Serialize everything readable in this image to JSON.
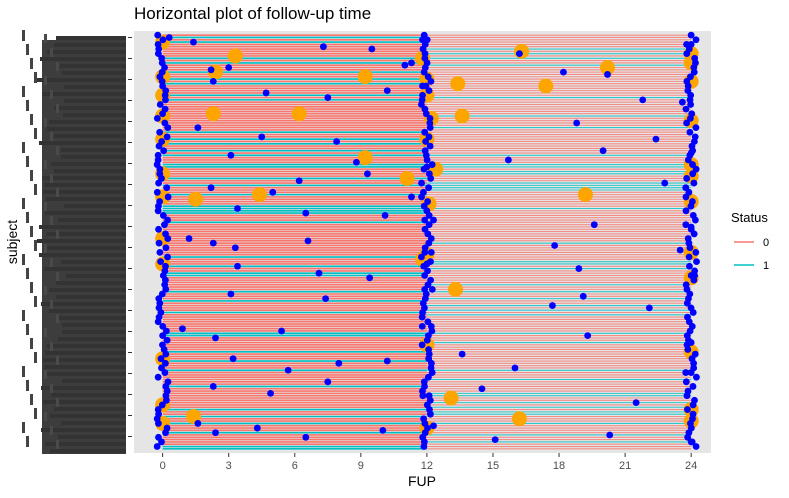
{
  "chart_data": {
    "type": "line",
    "title": "Horizontal plot of follow-up time",
    "xlabel": "FUP",
    "ylabel": "subject",
    "xlim": [
      -1.3,
      24.9
    ],
    "x_ticks": [
      0,
      3,
      6,
      9,
      12,
      15,
      18,
      21,
      24
    ],
    "y_tick_labels_legible": false,
    "n_subjects": 180,
    "grid": false,
    "panel_background": "#e5e5e5",
    "legend": {
      "title": "Status",
      "position": "right",
      "entries": [
        {
          "label": "0",
          "color": "#f8766d"
        },
        {
          "label": "1",
          "color": "#00bfc4"
        }
      ]
    },
    "segment_colors": {
      "0": "#f8766d",
      "1": "#00bfc4"
    },
    "start_times": [
      0,
      12
    ],
    "end_times": [
      12,
      24
    ],
    "event_marker_color": "#0000ff",
    "censor_marker_color": "#ffa500",
    "event_points": [
      [
        0.3,
        1
      ],
      [
        1.4,
        3
      ],
      [
        7.3,
        5
      ],
      [
        9.5,
        6
      ],
      [
        11.8,
        2
      ],
      [
        16.2,
        8
      ],
      [
        24,
        4
      ],
      [
        2.2,
        15
      ],
      [
        3.0,
        14
      ],
      [
        11.3,
        12
      ],
      [
        11.0,
        13
      ],
      [
        20.2,
        17
      ],
      [
        18.2,
        16
      ],
      [
        2.3,
        20
      ],
      [
        4.7,
        25
      ],
      [
        7.5,
        27
      ],
      [
        10.2,
        24
      ],
      [
        11.8,
        22
      ],
      [
        21.8,
        28
      ],
      [
        23.6,
        29
      ],
      [
        1.6,
        40
      ],
      [
        4.5,
        44
      ],
      [
        7.9,
        46
      ],
      [
        11.9,
        42
      ],
      [
        18.8,
        38
      ],
      [
        22.4,
        45
      ],
      [
        3.1,
        52
      ],
      [
        8.8,
        55
      ],
      [
        12.0,
        57
      ],
      [
        15.7,
        54
      ],
      [
        20.0,
        50
      ],
      [
        24.0,
        51
      ],
      [
        2.2,
        66
      ],
      [
        5.0,
        68
      ],
      [
        6.2,
        63
      ],
      [
        9.3,
        60
      ],
      [
        11.3,
        70
      ],
      [
        22.8,
        64
      ],
      [
        3.4,
        75
      ],
      [
        6.5,
        77
      ],
      [
        10.1,
        78
      ],
      [
        12.3,
        80
      ],
      [
        19.6,
        82
      ],
      [
        24,
        83
      ],
      [
        1.2,
        88
      ],
      [
        2.3,
        90
      ],
      [
        3.3,
        92
      ],
      [
        6.6,
        89
      ],
      [
        12.2,
        94
      ],
      [
        17.8,
        91
      ],
      [
        23.5,
        93
      ],
      [
        3.4,
        100
      ],
      [
        7.1,
        103
      ],
      [
        9.4,
        105
      ],
      [
        12.0,
        99
      ],
      [
        18.9,
        101
      ],
      [
        24,
        104
      ],
      [
        3.1,
        112
      ],
      [
        7.4,
        114
      ],
      [
        11.9,
        110
      ],
      [
        17.7,
        117
      ],
      [
        19.1,
        113
      ],
      [
        22.1,
        118
      ],
      [
        0.9,
        127
      ],
      [
        2.4,
        131
      ],
      [
        5.4,
        128
      ],
      [
        12.2,
        126
      ],
      [
        19.3,
        130
      ],
      [
        24,
        133
      ],
      [
        3.2,
        140
      ],
      [
        5.7,
        145
      ],
      [
        8.0,
        142
      ],
      [
        10.2,
        141
      ],
      [
        13.6,
        138
      ],
      [
        16.0,
        144
      ],
      [
        24,
        146
      ],
      [
        2.3,
        152
      ],
      [
        4.9,
        155
      ],
      [
        7.5,
        150
      ],
      [
        12.1,
        156
      ],
      [
        14.5,
        153
      ],
      [
        21.5,
        159
      ],
      [
        1.6,
        168
      ],
      [
        2.4,
        172
      ],
      [
        4.3,
        170
      ],
      [
        6.5,
        174
      ],
      [
        10.0,
        171
      ],
      [
        12.3,
        169
      ],
      [
        15.1,
        175
      ],
      [
        20.3,
        173
      ],
      [
        24,
        176
      ]
    ],
    "censor_points": [
      [
        0,
        3
      ],
      [
        3.3,
        9
      ],
      [
        11.8,
        10
      ],
      [
        16.3,
        7
      ],
      [
        24,
        8
      ],
      [
        0,
        18
      ],
      [
        2.4,
        16
      ],
      [
        9.2,
        18
      ],
      [
        12.0,
        19
      ],
      [
        20.2,
        14
      ],
      [
        24,
        12
      ],
      [
        0,
        26
      ],
      [
        12.0,
        26
      ],
      [
        13.4,
        21
      ],
      [
        17.4,
        22
      ],
      [
        24,
        20
      ],
      [
        0,
        35
      ],
      [
        2.3,
        34
      ],
      [
        6.2,
        34
      ],
      [
        12.2,
        36
      ],
      [
        13.6,
        35
      ],
      [
        24,
        37
      ],
      [
        0,
        45
      ],
      [
        9.2,
        53
      ],
      [
        12.0,
        45
      ],
      [
        24,
        56
      ],
      [
        0,
        60
      ],
      [
        11.1,
        62
      ],
      [
        12.4,
        58
      ],
      [
        24,
        61
      ],
      [
        1.5,
        71
      ],
      [
        4.4,
        69
      ],
      [
        0,
        70
      ],
      [
        12.1,
        73
      ],
      [
        19.2,
        69
      ],
      [
        24,
        72
      ],
      [
        0,
        88
      ],
      [
        12.0,
        95
      ],
      [
        24,
        94
      ],
      [
        0,
        99
      ],
      [
        13.3,
        110
      ],
      [
        11.8,
        97
      ],
      [
        24,
        105
      ],
      [
        0,
        140
      ],
      [
        12.0,
        134
      ],
      [
        24,
        137
      ],
      [
        0,
        160
      ],
      [
        13.1,
        157
      ],
      [
        24,
        162
      ],
      [
        1.4,
        165
      ],
      [
        0,
        168
      ],
      [
        16.2,
        166
      ],
      [
        12.0,
        170
      ],
      [
        24,
        167
      ]
    ]
  }
}
